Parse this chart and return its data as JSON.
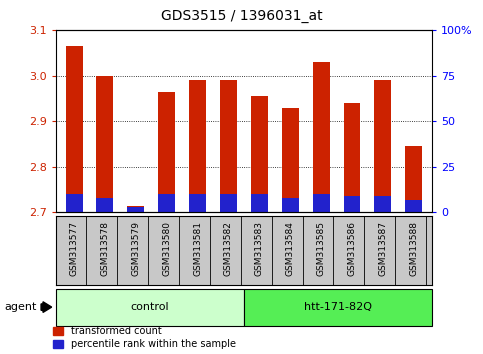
{
  "title": "GDS3515 / 1396031_at",
  "samples": [
    "GSM313577",
    "GSM313578",
    "GSM313579",
    "GSM313580",
    "GSM313581",
    "GSM313582",
    "GSM313583",
    "GSM313584",
    "GSM313585",
    "GSM313586",
    "GSM313587",
    "GSM313588"
  ],
  "transformed_count": [
    3.065,
    3.0,
    2.715,
    2.965,
    2.99,
    2.99,
    2.955,
    2.93,
    3.03,
    2.94,
    2.99,
    2.845
  ],
  "percentile_rank": [
    10,
    8,
    3,
    10,
    10,
    10,
    10,
    8,
    10,
    9,
    9,
    7
  ],
  "ymin": 2.7,
  "ymax": 3.1,
  "y_ticks": [
    2.7,
    2.8,
    2.9,
    3.0,
    3.1
  ],
  "right_yticks": [
    0,
    25,
    50,
    75,
    100
  ],
  "right_yticklabels": [
    "0",
    "25",
    "50",
    "75",
    "100%"
  ],
  "groups": [
    {
      "label": "control",
      "start": 0,
      "end": 6,
      "color": "#ccffcc"
    },
    {
      "label": "htt-171-82Q",
      "start": 6,
      "end": 12,
      "color": "#55ee55"
    }
  ],
  "agent_label": "agent",
  "bar_color_red": "#cc2200",
  "bar_color_blue": "#2222cc",
  "bar_width": 0.55,
  "background_color": "#ffffff",
  "xtick_bg_color": "#c8c8c8",
  "figsize": [
    4.83,
    3.54
  ],
  "dpi": 100
}
